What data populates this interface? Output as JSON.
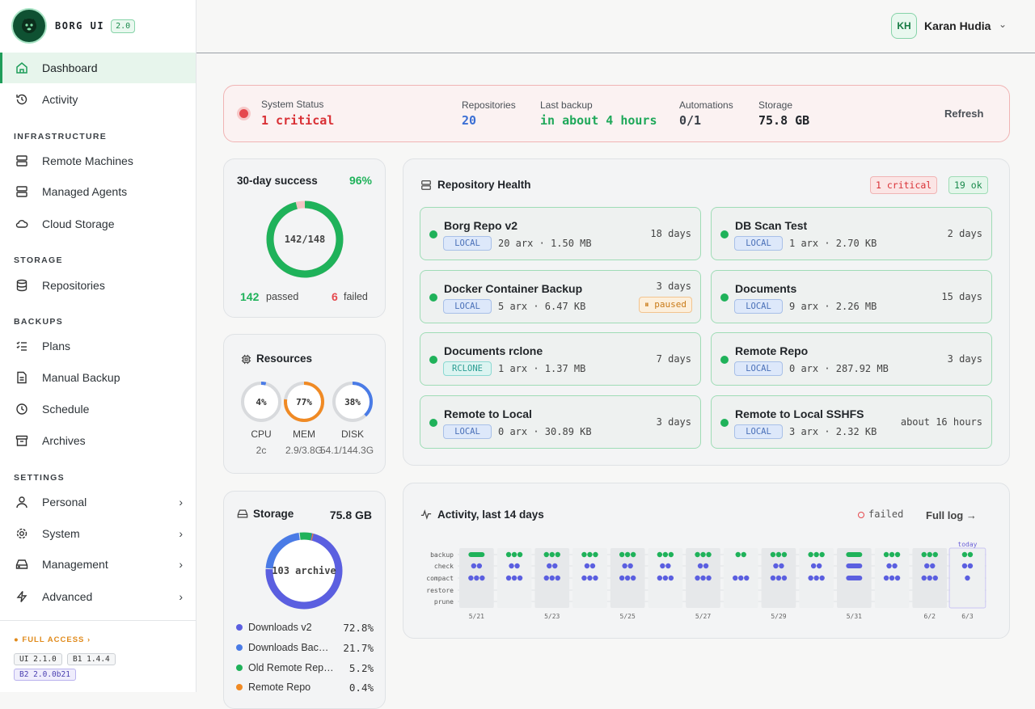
{
  "brand": {
    "name": "BORG UI",
    "version": "2.0"
  },
  "nav": {
    "main": [
      {
        "label": "Dashboard"
      },
      {
        "label": "Activity"
      }
    ],
    "infrastructure_title": "INFRASTRUCTURE",
    "infrastructure": [
      {
        "label": "Remote Machines"
      },
      {
        "label": "Managed Agents"
      },
      {
        "label": "Cloud Storage"
      }
    ],
    "storage_title": "STORAGE",
    "storage": [
      {
        "label": "Repositories"
      }
    ],
    "backups_title": "BACKUPS",
    "backups": [
      {
        "label": "Plans"
      },
      {
        "label": "Manual Backup"
      },
      {
        "label": "Schedule"
      },
      {
        "label": "Archives"
      }
    ],
    "settings_title": "SETTINGS",
    "settings": [
      {
        "label": "Personal"
      },
      {
        "label": "System"
      },
      {
        "label": "Management"
      },
      {
        "label": "Advanced"
      }
    ]
  },
  "footer": {
    "access": "FULL ACCESS",
    "ui": "UI 2.1.0",
    "b1": "B1 1.4.4",
    "b2": "B2 2.0.0b21"
  },
  "user": {
    "initials": "KH",
    "name": "Karan Hudia"
  },
  "status": {
    "system_label": "System Status",
    "system_value": "1 critical",
    "repos_label": "Repositories",
    "repos_value": "20",
    "last_label": "Last backup",
    "last_value": "in about 4 hours",
    "auto_label": "Automations",
    "auto_value": "0/1",
    "storage_label": "Storage",
    "storage_value": "75.8 GB",
    "refresh": "Refresh"
  },
  "success": {
    "title": "30-day success",
    "percent": "96%",
    "center": "142/148",
    "passed_n": "142",
    "passed_label": "passed",
    "failed_n": "6",
    "failed_label": "failed",
    "fraction": 0.96
  },
  "resources": {
    "title": "Resources",
    "items": [
      {
        "pct": "4%",
        "label": "CPU",
        "sub": "2c",
        "value": 0.04
      },
      {
        "pct": "77%",
        "label": "MEM",
        "sub": "2.9/3.8G",
        "value": 0.77
      },
      {
        "pct": "38%",
        "label": "DISK",
        "sub": "54.1/144.3G",
        "value": 0.38
      }
    ]
  },
  "storage_card": {
    "title": "Storage",
    "total": "75.8 GB",
    "center": "103 archive",
    "items": [
      {
        "name": "Downloads v2",
        "pct": "72.8%",
        "color": "#5b5fe0",
        "value": 72.8
      },
      {
        "name": "Downloads Bac…",
        "pct": "21.7%",
        "color": "#4a7be6",
        "value": 21.7
      },
      {
        "name": "Old Remote Rep…",
        "pct": "5.2%",
        "color": "#1fb25a",
        "value": 5.2
      },
      {
        "name": "Remote Repo",
        "pct": "0.4%",
        "color": "#f08a24",
        "value": 0.4
      }
    ]
  },
  "health": {
    "title": "Repository Health",
    "critical": "1 critical",
    "ok": "19 ok",
    "repos": [
      {
        "name": "Borg Repo v2",
        "type": "LOCAL",
        "meta": "20 arx · 1.50 MB",
        "age": "18 days"
      },
      {
        "name": "DB Scan Test",
        "type": "LOCAL",
        "meta": "1 arx · 2.70 KB",
        "age": "2 days"
      },
      {
        "name": "Docker Container Backup",
        "type": "LOCAL",
        "meta": "5 arx · 6.47 KB",
        "age": "3 days",
        "badge": "paused"
      },
      {
        "name": "Documents",
        "type": "LOCAL",
        "meta": "9 arx · 2.26 MB",
        "age": "15 days"
      },
      {
        "name": "Documents rclone",
        "type": "RCLONE",
        "meta": "1 arx · 1.37 MB",
        "age": "7 days"
      },
      {
        "name": "Remote Repo",
        "type": "LOCAL",
        "meta": "0 arx · 287.92 MB",
        "age": "3 days"
      },
      {
        "name": "Remote to Local",
        "type": "LOCAL",
        "meta": "0 arx · 30.89 KB",
        "age": "3 days"
      },
      {
        "name": "Remote to Local SSHFS",
        "type": "LOCAL",
        "meta": "3 arx · 2.32 KB",
        "age": "about 16 hours"
      }
    ]
  },
  "activity": {
    "title": "Activity, last 14 days",
    "failed_legend": "failed",
    "full_log": "Full log →",
    "today": "today",
    "rows": [
      "backup",
      "check",
      "compact",
      "restore",
      "prune"
    ],
    "dates": [
      "5/21",
      "5/23",
      "5/25",
      "5/27",
      "5/29",
      "5/31",
      "6/2",
      "6/3"
    ],
    "backup": [
      4,
      3,
      3,
      3,
      3,
      3,
      3,
      2,
      3,
      3,
      4,
      3,
      3,
      2
    ],
    "check": [
      2,
      2,
      2,
      2,
      2,
      2,
      2,
      0,
      2,
      2,
      4,
      2,
      2,
      2
    ],
    "compact": [
      3,
      3,
      3,
      3,
      3,
      3,
      3,
      3,
      3,
      3,
      4,
      3,
      3,
      1
    ]
  }
}
